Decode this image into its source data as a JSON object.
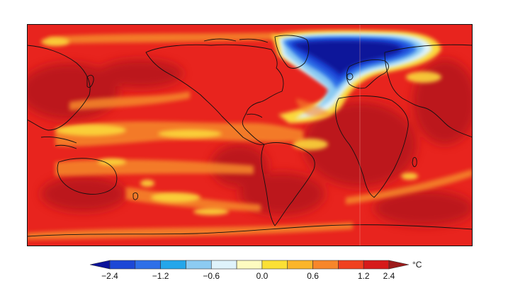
{
  "map": {
    "background_color": "#e8241e",
    "colorbar": {
      "unit": "°C",
      "colors": [
        "#0b129a",
        "#1c47d6",
        "#2e6fe8",
        "#24a6ea",
        "#8ccbf2",
        "#dff3fb",
        "#fdfbc0",
        "#fbe035",
        "#fbb52a",
        "#f7862a",
        "#f0401f",
        "#d61a1a",
        "#9c1a1a"
      ],
      "tick_labels": [
        "−2.4",
        "−1.2",
        "−0.6",
        "0.0",
        "0.6",
        "1.2",
        "2.4"
      ]
    }
  }
}
